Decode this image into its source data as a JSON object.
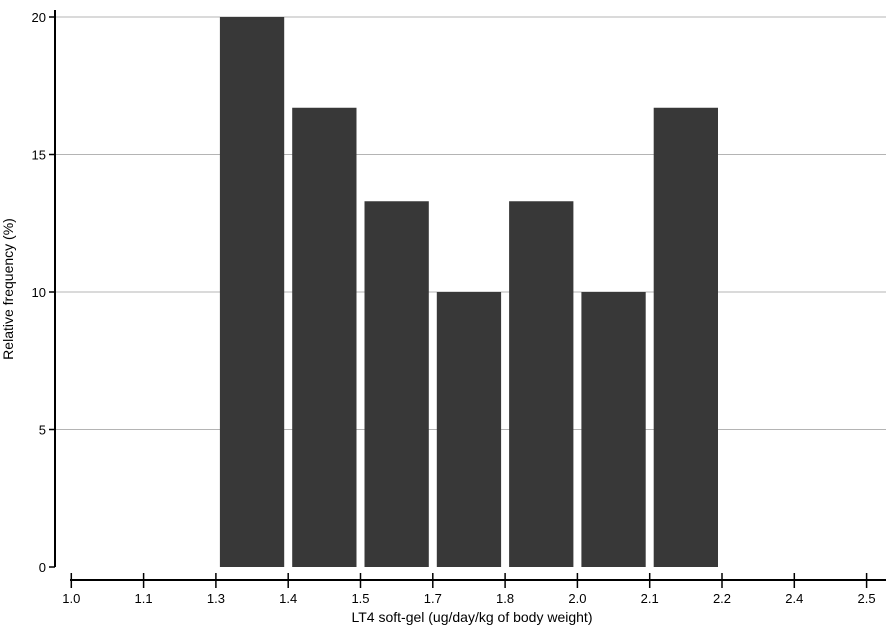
{
  "chart_data": {
    "type": "bar",
    "title": "",
    "xlabel": "LT4 soft-gel (ug/day/kg of body weight)",
    "ylabel": "Relative frequency (%)",
    "ylim": [
      0,
      20
    ],
    "y_ticks": [
      "0",
      "5",
      "10",
      "15",
      "20"
    ],
    "x_ticks": [
      "1.0",
      "1.1",
      "1.3",
      "1.4",
      "1.5",
      "1.7",
      "1.8",
      "2.0",
      "2.1",
      "2.2",
      "2.4",
      "2.5"
    ],
    "grid": "horizontal",
    "bars": [
      {
        "bin_index": 2,
        "value": 20.0
      },
      {
        "bin_index": 3,
        "value": 16.7
      },
      {
        "bin_index": 4,
        "value": 13.3
      },
      {
        "bin_index": 5,
        "value": 10.0
      },
      {
        "bin_index": 6,
        "value": 13.3
      },
      {
        "bin_index": 7,
        "value": 10.0
      },
      {
        "bin_index": 8,
        "value": 16.7
      }
    ],
    "colors": {
      "bar": "#383838",
      "grid": "#b4b4b4",
      "axis": "#000000"
    }
  }
}
